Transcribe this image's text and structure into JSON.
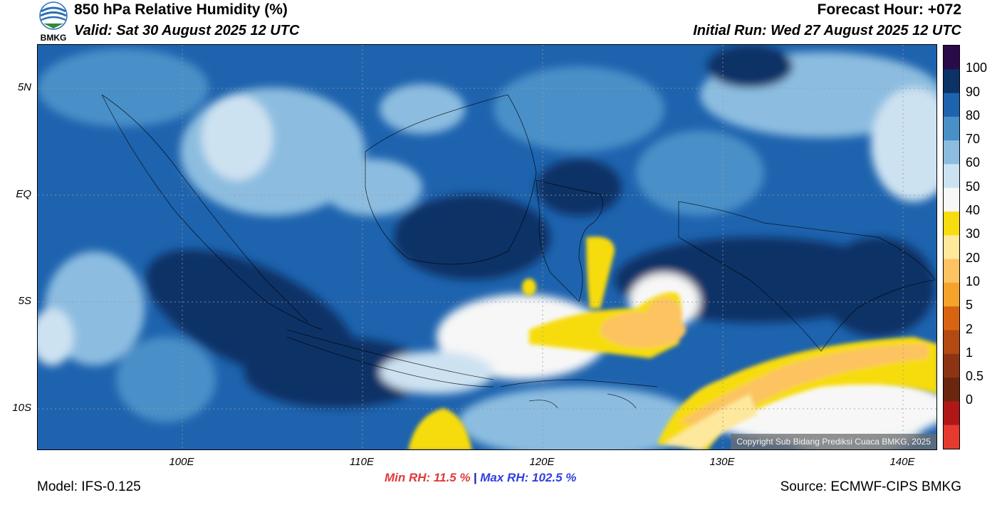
{
  "header": {
    "title": "850 hPa Relative Humidity (%)",
    "valid": "Valid: Sat 30 August 2025 12 UTC",
    "forecast_hour": "Forecast Hour: +072",
    "initial_run": "Initial Run: Wed 27 August 2025 12 UTC",
    "logo_text": "BMKG"
  },
  "map": {
    "lat_labels": [
      "5N",
      "EQ",
      "5S",
      "10S"
    ],
    "lon_labels": [
      "100E",
      "110E",
      "120E",
      "130E",
      "140E"
    ],
    "copyright": "Copyright Sub Bidang Prediksi Cuaca BMKG, 2025"
  },
  "colorbar": {
    "labels": [
      "100",
      "90",
      "80",
      "70",
      "60",
      "50",
      "40",
      "30",
      "20",
      "10",
      "5",
      "2",
      "1",
      "0.5",
      "0"
    ],
    "colors": [
      "#2b0a4a",
      "#0b3366",
      "#1e63ae",
      "#4a90c8",
      "#8cbde0",
      "#cde2f1",
      "#f7f7f7",
      "#f7dc10",
      "#fde89c",
      "#fcc360",
      "#f5a32a",
      "#d86412",
      "#b24a12",
      "#8c3414",
      "#6b2610",
      "#b01818",
      "#e63a2e"
    ]
  },
  "footer": {
    "model": "Model: IFS-0.125",
    "min_rh": "Min RH:  11.5 %",
    "separator": "|",
    "max_rh": "Max RH: 102.5 %",
    "source": "Source: ECMWF-CIPS BMKG"
  }
}
